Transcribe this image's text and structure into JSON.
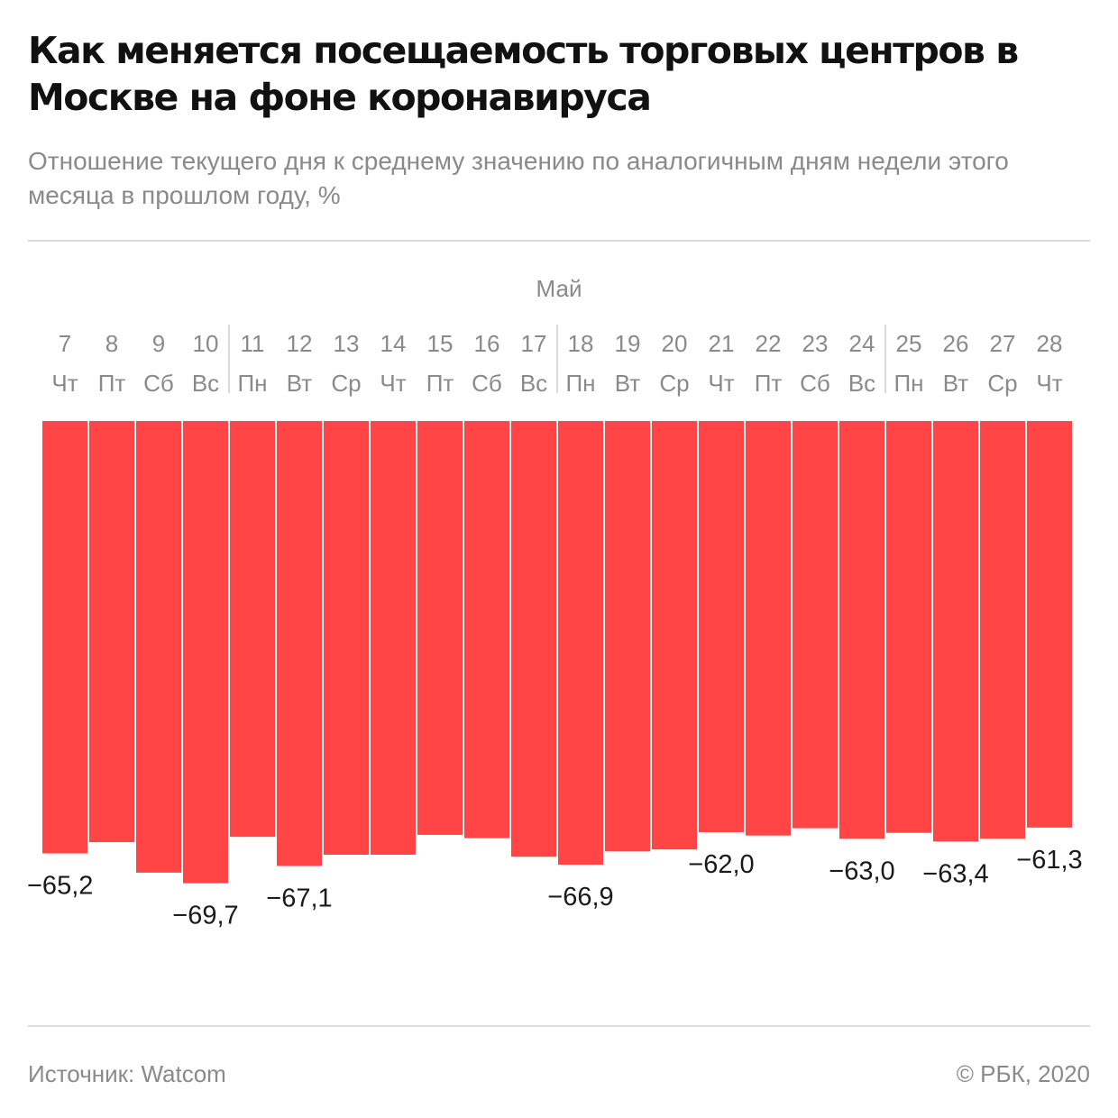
{
  "header": {
    "title": "Как меняется посещаемость торговых центров в Москве на фоне коронавируса",
    "subtitle": "Отношение текущего дня к среднему значению по аналогичным дням недели этого месяца в прошлом году, %"
  },
  "footer": {
    "source": "Источник: Watcom",
    "copyright": "© РБК, 2020"
  },
  "colors": {
    "bar": "#ff4546",
    "tick_text": "#8a8a8a",
    "label_text": "#1a1a1a",
    "separator": "#cfcfcf"
  },
  "chart_data": {
    "type": "bar",
    "month_label": "Май",
    "categories": [
      "7",
      "8",
      "9",
      "10",
      "11",
      "12",
      "13",
      "14",
      "15",
      "16",
      "17",
      "18",
      "19",
      "20",
      "21",
      "22",
      "23",
      "24",
      "25",
      "26",
      "27",
      "28"
    ],
    "weekdays": [
      "Чт",
      "Пт",
      "Сб",
      "Вс",
      "Пн",
      "Вт",
      "Ср",
      "Чт",
      "Пт",
      "Сб",
      "Вс",
      "Пн",
      "Вт",
      "Ср",
      "Чт",
      "Пт",
      "Сб",
      "Вс",
      "Пн",
      "Вт",
      "Ср",
      "Чт"
    ],
    "values": [
      -65.2,
      -63.5,
      -68.1,
      -69.7,
      -62.7,
      -67.1,
      -65.4,
      -65.4,
      -62.4,
      -62.9,
      -65.7,
      -66.9,
      -64.9,
      -64.6,
      -62.0,
      -62.5,
      -61.4,
      -63.0,
      -62.1,
      -63.4,
      -63.0,
      -61.3
    ],
    "data_labels": [
      "−65,2",
      "",
      "",
      "−69,7",
      "",
      "−67,1",
      "",
      "",
      "",
      "",
      "",
      "−66,9",
      "",
      "",
      "−62,0",
      "",
      "",
      "−63,0",
      "",
      "−63,4",
      "",
      "−61,3"
    ],
    "label_side": [
      "left",
      "",
      "",
      "center",
      "",
      "center",
      "",
      "",
      "",
      "",
      "",
      "center",
      "",
      "",
      "center",
      "",
      "",
      "center",
      "",
      "center",
      "",
      "center"
    ],
    "week_separators_before": [
      "11",
      "18",
      "25"
    ],
    "ylim": [
      -70,
      0
    ]
  }
}
